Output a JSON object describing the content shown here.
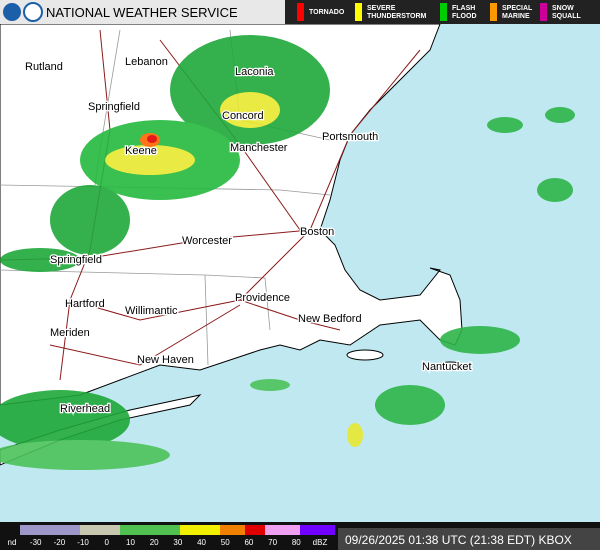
{
  "header": {
    "title": "NATIONAL WEATHER SERVICE"
  },
  "warnings": [
    {
      "lines": [
        "TORNADO"
      ],
      "color": "#ff0000"
    },
    {
      "lines": [
        "SEVERE",
        "THUNDERSTORM"
      ],
      "color": "#ffff00"
    },
    {
      "lines": [
        "FLASH",
        "FLOOD"
      ],
      "color": "#00cc00"
    },
    {
      "lines": [
        "SPECIAL",
        "MARINE"
      ],
      "color": "#ff9900"
    },
    {
      "lines": [
        "SNOW",
        "SQUALL"
      ],
      "color": "#cc0099"
    }
  ],
  "cities": [
    "Rutland",
    "Lebanon",
    "Laconia",
    "Springfield",
    "Concord",
    "Portsmouth",
    "Keene",
    "Manchester",
    "Worcester",
    "Boston",
    "Springfield",
    "Hartford",
    "Willimantic",
    "Providence",
    "New Bedford",
    "Meriden",
    "New Haven",
    "Nantucket",
    "Riverhead"
  ],
  "scale": {
    "labels": [
      "nd",
      -30,
      -20,
      -10,
      0,
      10,
      20,
      30,
      40,
      50,
      60,
      70,
      80,
      "dBZ"
    ]
  },
  "timestamp": "09/26/2025 01:38 UTC (21:38 EDT) KBOX"
}
